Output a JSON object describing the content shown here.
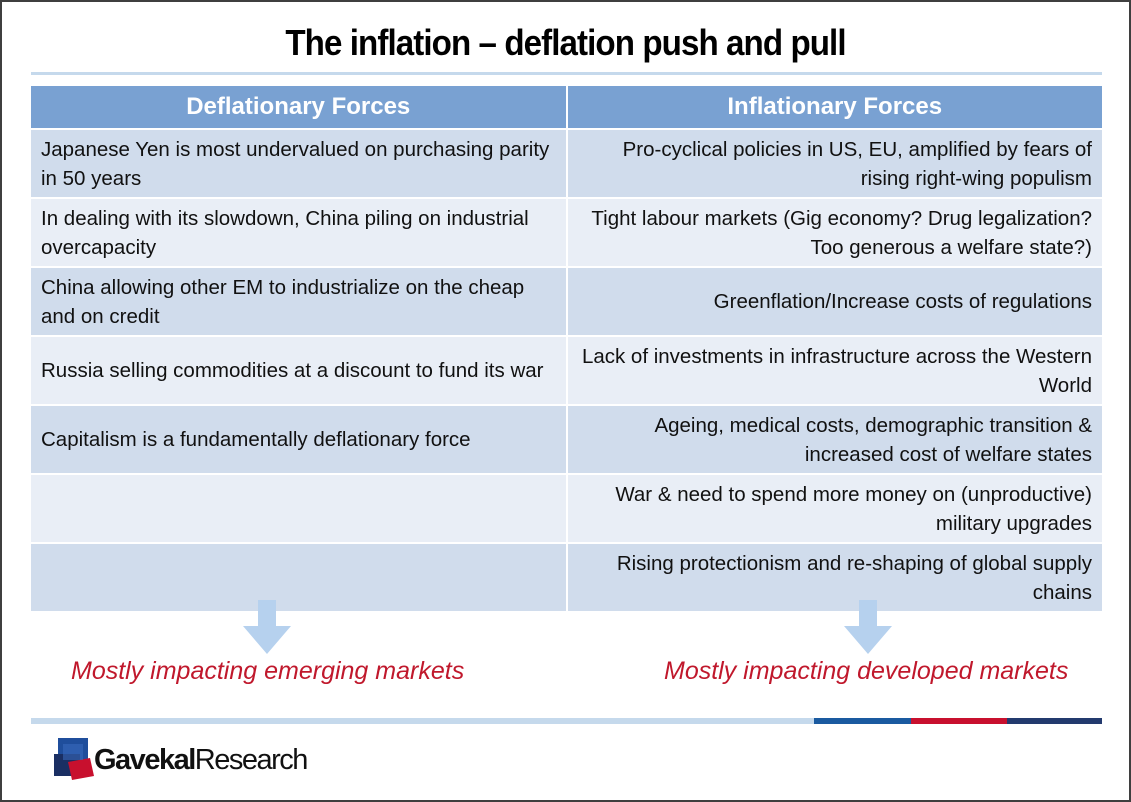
{
  "title": "The inflation – deflation push and pull",
  "table": {
    "headers": [
      "Deflationary Forces",
      "Inflationary Forces"
    ],
    "rows": [
      [
        "Japanese Yen is most undervalued on purchasing parity in 50 years",
        "Pro-cyclical policies in US, EU, amplified by fears of rising right-wing populism"
      ],
      [
        "In dealing with its slowdown, China piling on industrial overcapacity",
        "Tight labour markets (Gig economy? Drug legalization? Too generous a welfare state?)"
      ],
      [
        "China allowing other EM to industrialize on the cheap and on credit",
        "Greenflation/Increase costs of regulations"
      ],
      [
        "Russia selling commodities at a discount to fund its war",
        "Lack of investments in infrastructure across the Western World"
      ],
      [
        "Capitalism is a fundamentally deflationary force",
        "Ageing, medical costs, demographic transition & increased cost of welfare states"
      ],
      [
        "",
        "War & need to spend more money on (unproductive) military upgrades"
      ],
      [
        "",
        "Rising protectionism and re-shaping of global supply chains"
      ]
    ]
  },
  "impacts": {
    "left": "Mostly impacting emerging markets",
    "right": "Mostly impacting developed markets"
  },
  "logo": {
    "brand_bold": "Gavekal",
    "brand_regular": "Research"
  },
  "colors": {
    "header_bg": "#79a1d2",
    "row_dark": "#d0dcec",
    "row_light": "#e9eef6",
    "accent_red": "#c0182c",
    "bar_blue": "#1a5aa0",
    "bar_red": "#c8102e",
    "bar_navy": "#233a6e"
  }
}
